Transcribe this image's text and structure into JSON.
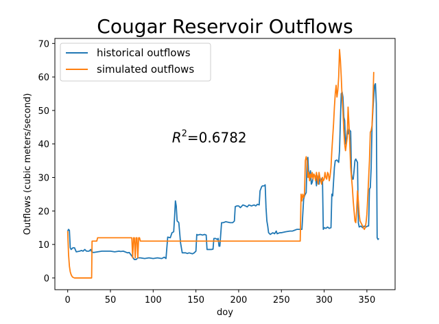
{
  "chart_data": {
    "type": "line",
    "title": "Cougar Reservoir Outflows",
    "xlabel": "doy",
    "ylabel": "Outflows (cubic meters/second)",
    "xlim": [
      -15,
      383
    ],
    "ylim": [
      -3.5,
      71.5
    ],
    "xticks": [
      0,
      50,
      100,
      150,
      200,
      250,
      300,
      350
    ],
    "yticks": [
      0,
      10,
      20,
      30,
      40,
      50,
      60,
      70
    ],
    "grid": false,
    "legend_position": "upper-left",
    "annotation": {
      "prefix": "R",
      "sup": "2",
      "suffix": "=0.6782",
      "x": 122,
      "y": 40.5
    },
    "series": [
      {
        "name": "historical outflows",
        "color": "#1f77b4",
        "points": [
          [
            0,
            14
          ],
          [
            1,
            14.5
          ],
          [
            2,
            14.2
          ],
          [
            3,
            9
          ],
          [
            4,
            8.5
          ],
          [
            6,
            9
          ],
          [
            8,
            9
          ],
          [
            10,
            7.8
          ],
          [
            14,
            8
          ],
          [
            16,
            8.2
          ],
          [
            18,
            8
          ],
          [
            20,
            8.5
          ],
          [
            22,
            8
          ],
          [
            25,
            8
          ],
          [
            27,
            8.5
          ],
          [
            28,
            7.8
          ],
          [
            30,
            7.6
          ],
          [
            35,
            7.8
          ],
          [
            40,
            8
          ],
          [
            45,
            8
          ],
          [
            50,
            8
          ],
          [
            55,
            7.8
          ],
          [
            60,
            8
          ],
          [
            62,
            7.9
          ],
          [
            65,
            8
          ],
          [
            70,
            7.5
          ],
          [
            72,
            7.6
          ],
          [
            78,
            5.5
          ],
          [
            80,
            5.5
          ],
          [
            82,
            6
          ],
          [
            85,
            6
          ],
          [
            90,
            5.8
          ],
          [
            95,
            6
          ],
          [
            100,
            5.8
          ],
          [
            105,
            6
          ],
          [
            110,
            5.8
          ],
          [
            113,
            6.2
          ],
          [
            115,
            5.8
          ],
          [
            117,
            12.2
          ],
          [
            120,
            12
          ],
          [
            122,
            13.5
          ],
          [
            124,
            13.8
          ],
          [
            125,
            18
          ],
          [
            126,
            23
          ],
          [
            127,
            21.5
          ],
          [
            128,
            17
          ],
          [
            129,
            16.8
          ],
          [
            130,
            16.5
          ],
          [
            132,
            10.5
          ],
          [
            134,
            7.5
          ],
          [
            138,
            7.5
          ],
          [
            140,
            7.3
          ],
          [
            142,
            7.5
          ],
          [
            146,
            7.2
          ],
          [
            148,
            7.5
          ],
          [
            150,
            8
          ],
          [
            151,
            13
          ],
          [
            152,
            12.8
          ],
          [
            155,
            13
          ],
          [
            158,
            12.8
          ],
          [
            160,
            13
          ],
          [
            162,
            12.8
          ],
          [
            163,
            8.5
          ],
          [
            165,
            8.5
          ],
          [
            168,
            8.5
          ],
          [
            170,
            8.6
          ],
          [
            171,
            11.8
          ],
          [
            173,
            11.8
          ],
          [
            175,
            11.5
          ],
          [
            176,
            11.8
          ],
          [
            177,
            9.5
          ],
          [
            178,
            9.5
          ],
          [
            180,
            16.5
          ],
          [
            182,
            16.5
          ],
          [
            185,
            16.8
          ],
          [
            190,
            16.5
          ],
          [
            193,
            16.5
          ],
          [
            195,
            17
          ],
          [
            196,
            21.3
          ],
          [
            198,
            21.5
          ],
          [
            200,
            21.5
          ],
          [
            202,
            21
          ],
          [
            205,
            21.8
          ],
          [
            208,
            21.5
          ],
          [
            210,
            21.2
          ],
          [
            212,
            21.8
          ],
          [
            215,
            21.5
          ],
          [
            218,
            21.8
          ],
          [
            220,
            21.5
          ],
          [
            222,
            22
          ],
          [
            224,
            21.8
          ],
          [
            225,
            26
          ],
          [
            227,
            27.3
          ],
          [
            228,
            27.5
          ],
          [
            230,
            27.5
          ],
          [
            231,
            27.8
          ],
          [
            232,
            21
          ],
          [
            233,
            17
          ],
          [
            234,
            15.5
          ],
          [
            235,
            13.5
          ],
          [
            237,
            13
          ],
          [
            240,
            13.5
          ],
          [
            242,
            13.2
          ],
          [
            244,
            14
          ],
          [
            245,
            13.2
          ],
          [
            248,
            13.5
          ],
          [
            250,
            13.5
          ],
          [
            255,
            13.8
          ],
          [
            260,
            14
          ],
          [
            263,
            14
          ],
          [
            265,
            14.2
          ],
          [
            268,
            14.5
          ],
          [
            270,
            14.5
          ],
          [
            272,
            14.5
          ],
          [
            274,
            14.5
          ],
          [
            276,
            23.5
          ],
          [
            277,
            24.5
          ],
          [
            278,
            25
          ],
          [
            279,
            25.5
          ],
          [
            280,
            35
          ],
          [
            281,
            36
          ],
          [
            282,
            30
          ],
          [
            284,
            32
          ],
          [
            285,
            28
          ],
          [
            286,
            28.5
          ],
          [
            288,
            31
          ],
          [
            290,
            30
          ],
          [
            291,
            27.5
          ],
          [
            292,
            30.5
          ],
          [
            294,
            28
          ],
          [
            295,
            30
          ],
          [
            296,
            29
          ],
          [
            298,
            30
          ],
          [
            299,
            14.5
          ],
          [
            300,
            15
          ],
          [
            302,
            14.8
          ],
          [
            304,
            15.2
          ],
          [
            306,
            14.8
          ],
          [
            308,
            15
          ],
          [
            309,
            25
          ],
          [
            310,
            24.5
          ],
          [
            312,
            33
          ],
          [
            313,
            35
          ],
          [
            315,
            35.2
          ],
          [
            317,
            34.5
          ],
          [
            318,
            38
          ],
          [
            319,
            47
          ],
          [
            320,
            55
          ],
          [
            321,
            55.5
          ],
          [
            322,
            54
          ],
          [
            323,
            48
          ],
          [
            324,
            47
          ],
          [
            325,
            40
          ],
          [
            326,
            41
          ],
          [
            327,
            44
          ],
          [
            328,
            43
          ],
          [
            329,
            44.5
          ],
          [
            330,
            44
          ],
          [
            331,
            43.8
          ],
          [
            332,
            31
          ],
          [
            333,
            29.5
          ],
          [
            334,
            29.5
          ],
          [
            335,
            32
          ],
          [
            336,
            35
          ],
          [
            337,
            35.5
          ],
          [
            338,
            35
          ],
          [
            339,
            34.5
          ],
          [
            340,
            16.5
          ],
          [
            341,
            15.2
          ],
          [
            343,
            15.5
          ],
          [
            345,
            15
          ],
          [
            347,
            15.5
          ],
          [
            349,
            15.2
          ],
          [
            351,
            15.5
          ],
          [
            352,
            15.5
          ],
          [
            353,
            26.5
          ],
          [
            354,
            27
          ],
          [
            355,
            33
          ],
          [
            356,
            45
          ],
          [
            357,
            50
          ],
          [
            358,
            54
          ],
          [
            359,
            57.5
          ],
          [
            360,
            58
          ],
          [
            361,
            52
          ],
          [
            362,
            12
          ],
          [
            363,
            11.5
          ],
          [
            364,
            11.8
          ]
        ]
      },
      {
        "name": "simulated outflows",
        "color": "#ff7f0e",
        "points": [
          [
            0,
            14
          ],
          [
            1,
            7
          ],
          [
            2,
            3.5
          ],
          [
            3,
            1.8
          ],
          [
            4,
            1
          ],
          [
            5,
            0.5
          ],
          [
            6,
            0.2
          ],
          [
            8,
            0
          ],
          [
            15,
            0
          ],
          [
            25,
            0
          ],
          [
            28,
            0
          ],
          [
            28.5,
            11
          ],
          [
            30,
            11
          ],
          [
            32,
            11
          ],
          [
            34,
            11
          ],
          [
            35,
            12
          ],
          [
            40,
            12
          ],
          [
            50,
            12
          ],
          [
            60,
            12
          ],
          [
            70,
            12
          ],
          [
            75,
            12
          ],
          [
            76,
            6
          ],
          [
            77,
            12
          ],
          [
            78,
            12
          ],
          [
            79,
            6
          ],
          [
            80,
            12
          ],
          [
            81,
            12
          ],
          [
            82,
            6
          ],
          [
            83,
            12
          ],
          [
            84,
            12
          ],
          [
            85,
            11
          ],
          [
            100,
            11
          ],
          [
            120,
            11
          ],
          [
            140,
            11
          ],
          [
            160,
            11
          ],
          [
            180,
            11
          ],
          [
            200,
            11
          ],
          [
            220,
            11
          ],
          [
            240,
            11
          ],
          [
            255,
            11
          ],
          [
            260,
            11
          ],
          [
            265,
            11
          ],
          [
            270,
            11
          ],
          [
            272,
            11
          ],
          [
            273,
            25
          ],
          [
            274,
            23
          ],
          [
            275,
            25
          ],
          [
            276,
            24
          ],
          [
            277,
            25
          ],
          [
            278,
            35
          ],
          [
            279,
            36.2
          ],
          [
            280,
            35
          ],
          [
            281,
            30
          ],
          [
            282,
            31.5
          ],
          [
            283,
            29
          ],
          [
            284,
            31
          ],
          [
            285,
            30
          ],
          [
            286,
            31.5
          ],
          [
            287,
            29.5
          ],
          [
            288,
            31
          ],
          [
            289,
            30.5
          ],
          [
            290,
            29
          ],
          [
            291,
            31.5
          ],
          [
            292,
            30
          ],
          [
            293,
            28
          ],
          [
            294,
            31.5
          ],
          [
            295,
            30
          ],
          [
            296,
            29
          ],
          [
            297,
            28
          ],
          [
            298,
            30
          ],
          [
            299,
            29
          ],
          [
            300,
            29.5
          ],
          [
            301,
            31.5
          ],
          [
            302,
            30
          ],
          [
            303,
            29.5
          ],
          [
            304,
            31.5
          ],
          [
            305,
            31
          ],
          [
            306,
            29
          ],
          [
            307,
            30.5
          ],
          [
            308,
            33
          ],
          [
            309,
            38
          ],
          [
            310,
            42
          ],
          [
            311,
            46
          ],
          [
            312,
            51
          ],
          [
            313,
            55
          ],
          [
            314,
            57.5
          ],
          [
            315,
            54
          ],
          [
            316,
            56
          ],
          [
            317,
            60
          ],
          [
            318,
            68.2
          ],
          [
            319,
            65
          ],
          [
            320,
            60
          ],
          [
            321,
            54
          ],
          [
            322,
            50
          ],
          [
            323,
            44
          ],
          [
            324,
            40
          ],
          [
            325,
            38
          ],
          [
            326,
            40
          ],
          [
            327,
            42
          ],
          [
            328,
            51
          ],
          [
            329,
            46
          ],
          [
            330,
            40
          ],
          [
            331,
            33
          ],
          [
            332,
            30
          ],
          [
            333,
            27
          ],
          [
            334,
            23
          ],
          [
            335,
            20
          ],
          [
            336,
            17
          ],
          [
            337,
            16.5
          ],
          [
            338,
            20
          ],
          [
            339,
            26
          ],
          [
            340,
            23
          ],
          [
            341,
            19
          ],
          [
            342,
            17
          ],
          [
            343,
            16.5
          ],
          [
            344,
            16
          ],
          [
            345,
            15.5
          ],
          [
            346,
            15
          ],
          [
            347,
            14.5
          ],
          [
            348,
            15
          ],
          [
            349,
            16.5
          ],
          [
            350,
            19
          ],
          [
            351,
            24
          ],
          [
            352,
            29.5
          ],
          [
            353,
            35
          ],
          [
            354,
            43.5
          ],
          [
            355,
            44
          ],
          [
            356,
            45.5
          ],
          [
            357,
            52
          ],
          [
            358,
            61.5
          ]
        ]
      }
    ]
  }
}
